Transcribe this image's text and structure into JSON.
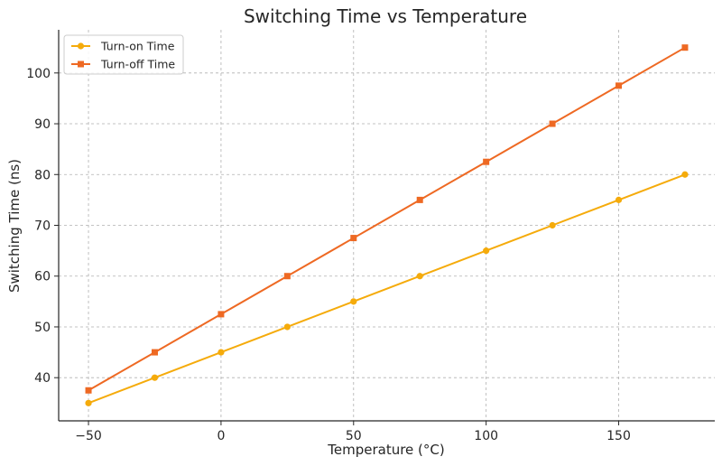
{
  "chart_data": {
    "type": "line",
    "title": "Switching Time vs Temperature",
    "xlabel": "Temperature (°C)",
    "ylabel": "Switching Time (ns)",
    "x": [
      -50,
      -25,
      0,
      25,
      50,
      75,
      100,
      125,
      150,
      175
    ],
    "xlim": [
      -61.25,
      186.25
    ],
    "ylim": [
      31.5,
      108.5
    ],
    "xticks": [
      -50,
      0,
      50,
      100,
      150
    ],
    "xtick_labels": [
      "−50",
      "0",
      "50",
      "100",
      "150"
    ],
    "yticks": [
      40,
      50,
      60,
      70,
      80,
      90,
      100
    ],
    "ytick_labels": [
      "40",
      "50",
      "60",
      "70",
      "80",
      "90",
      "100"
    ],
    "grid": true,
    "legend_position": "top-left",
    "series": [
      {
        "name": "Turn-on Time",
        "color": "#f5ab0b",
        "marker": "circle",
        "values": [
          35,
          40,
          45,
          50,
          55,
          60,
          65,
          70,
          75,
          80
        ]
      },
      {
        "name": "Turn-off Time",
        "color": "#ee6923",
        "marker": "square",
        "values": [
          37.5,
          45,
          52.5,
          60,
          67.5,
          75,
          82.5,
          90,
          97.5,
          105
        ]
      }
    ]
  }
}
